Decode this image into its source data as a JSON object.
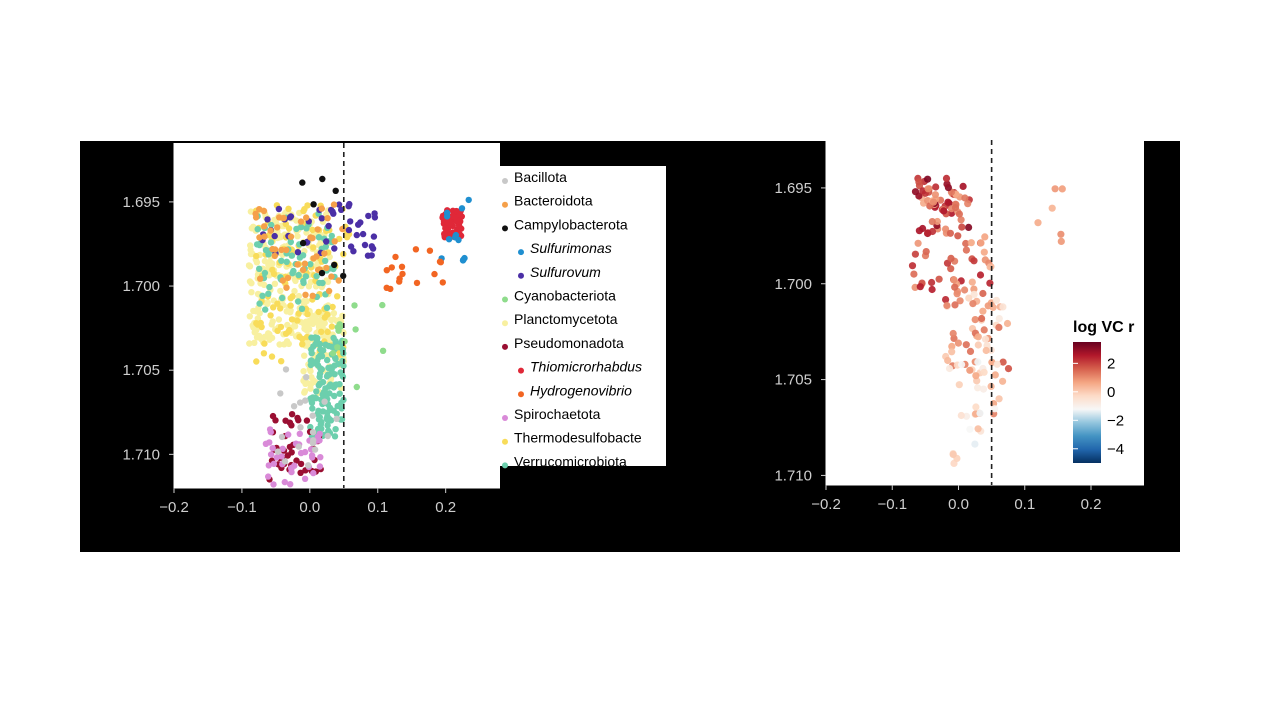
{
  "chart_data": [
    {
      "type": "scatter",
      "xlim": [
        -0.2,
        0.28
      ],
      "ylim": [
        1.712,
        1.6915
      ],
      "y_reversed": true,
      "x_ticks": [
        "−0.2",
        "−0.1",
        "0.0",
        "0.1",
        "0.2"
      ],
      "x_tick_values": [
        -0.2,
        -0.1,
        0.0,
        0.1,
        0.2
      ],
      "y_ticks": [
        "1.695",
        "1.700",
        "1.705",
        "1.710"
      ],
      "y_tick_values": [
        1.695,
        1.7,
        1.705,
        1.71
      ],
      "threshold_x": 0.05,
      "legend": [
        {
          "label": "Bacillota",
          "color": "#c8c8c8",
          "italic": false
        },
        {
          "label": "Bacteroidota",
          "color": "#f5a04a",
          "italic": false
        },
        {
          "label": "Campylobacterota",
          "color": "#111111",
          "italic": false
        },
        {
          "label": "Sulfurimonas",
          "color": "#1f8fd0",
          "italic": true
        },
        {
          "label": "Sulfurovum",
          "color": "#4b2fa6",
          "italic": true
        },
        {
          "label": "Cyanobacteriota",
          "color": "#8fdc8c",
          "italic": false
        },
        {
          "label": "Planctomycetota",
          "color": "#f8f0a0",
          "italic": false
        },
        {
          "label": "Pseudomonadota",
          "color": "#9a0f32",
          "italic": false
        },
        {
          "label": "Thiomicrorhabdus",
          "color": "#e02838",
          "italic": true
        },
        {
          "label": "Hydrogenovibrio",
          "color": "#f26522",
          "italic": true
        },
        {
          "label": "Spirochaetota",
          "color": "#d98ad8",
          "italic": false
        },
        {
          "label": "Thermodesulfobacte",
          "color": "#f8dc5a",
          "italic": false
        },
        {
          "label": "Verrucomicrobiota",
          "color": "#6ccfad",
          "italic": false
        }
      ],
      "clusters": [
        {
          "group": "Planctomycetota",
          "n": 260,
          "x": [
            -0.09,
            0.03
          ],
          "y": [
            1.6955,
            1.7035
          ]
        },
        {
          "group": "Planctomycetota",
          "n": 90,
          "x": [
            -0.01,
            0.05
          ],
          "y": [
            1.7015,
            1.7065
          ]
        },
        {
          "group": "Thermodesulfobacte",
          "n": 110,
          "x": [
            -0.08,
            0.06
          ],
          "y": [
            1.6952,
            1.7045
          ]
        },
        {
          "group": "Verrucomicrobiota",
          "n": 130,
          "x": [
            0.0,
            0.05
          ],
          "y": [
            1.703,
            1.709
          ]
        },
        {
          "group": "Verrucomicrobiota",
          "n": 70,
          "x": [
            -0.08,
            0.04
          ],
          "y": [
            1.6955,
            1.7015
          ]
        },
        {
          "group": "Sulfurovum",
          "n": 45,
          "x": [
            -0.07,
            0.1
          ],
          "y": [
            1.695,
            1.6985
          ]
        },
        {
          "group": "Bacteroidota",
          "n": 45,
          "x": [
            -0.08,
            0.05
          ],
          "y": [
            1.6945,
            1.7015
          ]
        },
        {
          "group": "Pseudomonadota",
          "n": 40,
          "x": [
            -0.06,
            0.02
          ],
          "y": [
            1.7075,
            1.7115
          ]
        },
        {
          "group": "Spirochaetota",
          "n": 40,
          "x": [
            -0.07,
            0.02
          ],
          "y": [
            1.7085,
            1.7118
          ]
        },
        {
          "group": "Bacillota",
          "n": 20,
          "x": [
            -0.05,
            0.04
          ],
          "y": [
            1.704,
            1.711
          ]
        },
        {
          "group": "Cyanobacteriota",
          "n": 12,
          "x": [
            0.03,
            0.11
          ],
          "y": [
            1.701,
            1.706
          ]
        },
        {
          "group": "Thiomicrorhabdus",
          "n": 55,
          "x": [
            0.195,
            0.225
          ],
          "y": [
            1.6955,
            1.6972
          ]
        },
        {
          "group": "Sulfurimonas",
          "n": 12,
          "x": [
            0.17,
            0.245
          ],
          "y": [
            1.6948,
            1.6985
          ]
        },
        {
          "group": "Hydrogenovibrio",
          "n": 16,
          "x": [
            0.11,
            0.21
          ],
          "y": [
            1.6975,
            1.7005
          ]
        },
        {
          "group": "Campylobacterota",
          "n": 8,
          "x": [
            -0.04,
            0.05
          ],
          "y": [
            1.6935,
            1.7
          ]
        }
      ]
    },
    {
      "type": "scatter",
      "xlim": [
        -0.2,
        0.28
      ],
      "ylim": [
        1.7105,
        1.6925
      ],
      "y_reversed": true,
      "x_ticks": [
        "−0.2",
        "−0.1",
        "0.0",
        "0.1",
        "0.2"
      ],
      "x_tick_values": [
        -0.2,
        -0.1,
        0.0,
        0.1,
        0.2
      ],
      "y_ticks": [
        "1.695",
        "1.700",
        "1.705",
        "1.710"
      ],
      "y_tick_values": [
        1.695,
        1.7,
        1.705,
        1.71
      ],
      "threshold_x": 0.05,
      "colorbar": {
        "title": "log VC r",
        "range": [
          -5,
          3.5
        ],
        "ticks": [
          "2",
          "0",
          "−2",
          "−4"
        ],
        "tick_values": [
          2,
          0,
          -2,
          -4
        ],
        "colors": [
          "#053061",
          "#2166ac",
          "#4393c3",
          "#92c5de",
          "#f7f7f7",
          "#fddbc7",
          "#f4a582",
          "#d6604d",
          "#b2182b",
          "#67001f"
        ]
      },
      "clusters": [
        {
          "n": 70,
          "x": [
            -0.065,
            0.02
          ],
          "y": [
            1.6945,
            1.6975
          ],
          "c": [
            0.5,
            3.2
          ]
        },
        {
          "n": 45,
          "x": [
            -0.07,
            0.05
          ],
          "y": [
            1.6975,
            1.701
          ],
          "c": [
            0.3,
            2.5
          ]
        },
        {
          "n": 50,
          "x": [
            -0.02,
            0.08
          ],
          "y": [
            1.7005,
            1.7045
          ],
          "c": [
            -0.8,
            1.8
          ]
        },
        {
          "n": 30,
          "x": [
            0.0,
            0.07
          ],
          "y": [
            1.704,
            1.7085
          ],
          "c": [
            -1.5,
            1.2
          ]
        },
        {
          "n": 6,
          "x": [
            0.07,
            0.16
          ],
          "y": [
            1.6945,
            1.698
          ],
          "c": [
            0.2,
            1.0
          ]
        },
        {
          "n": 4,
          "x": [
            -0.01,
            0.0
          ],
          "y": [
            1.7085,
            1.7095
          ],
          "c": [
            -0.5,
            0.5
          ]
        }
      ]
    }
  ]
}
